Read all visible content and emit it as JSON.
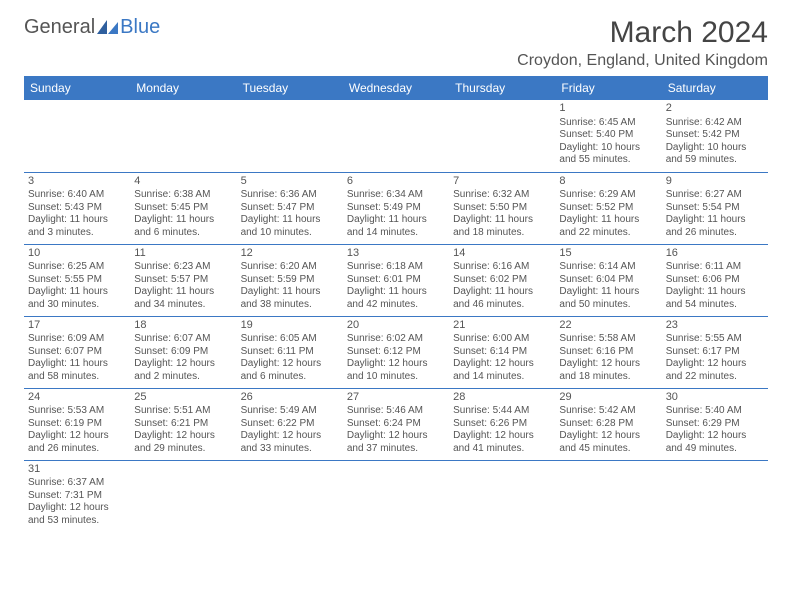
{
  "logo": {
    "text1": "General",
    "text2": "Blue"
  },
  "title": "March 2024",
  "location": "Croydon, England, United Kingdom",
  "colors": {
    "header_bg": "#3b78c4",
    "header_text": "#ffffff",
    "border": "#3b78c4",
    "text": "#555555",
    "background": "#ffffff"
  },
  "day_headers": [
    "Sunday",
    "Monday",
    "Tuesday",
    "Wednesday",
    "Thursday",
    "Friday",
    "Saturday"
  ],
  "weeks": [
    [
      null,
      null,
      null,
      null,
      null,
      {
        "n": "1",
        "sunrise": "Sunrise: 6:45 AM",
        "sunset": "Sunset: 5:40 PM",
        "daylight1": "Daylight: 10 hours",
        "daylight2": "and 55 minutes."
      },
      {
        "n": "2",
        "sunrise": "Sunrise: 6:42 AM",
        "sunset": "Sunset: 5:42 PM",
        "daylight1": "Daylight: 10 hours",
        "daylight2": "and 59 minutes."
      }
    ],
    [
      {
        "n": "3",
        "sunrise": "Sunrise: 6:40 AM",
        "sunset": "Sunset: 5:43 PM",
        "daylight1": "Daylight: 11 hours",
        "daylight2": "and 3 minutes."
      },
      {
        "n": "4",
        "sunrise": "Sunrise: 6:38 AM",
        "sunset": "Sunset: 5:45 PM",
        "daylight1": "Daylight: 11 hours",
        "daylight2": "and 6 minutes."
      },
      {
        "n": "5",
        "sunrise": "Sunrise: 6:36 AM",
        "sunset": "Sunset: 5:47 PM",
        "daylight1": "Daylight: 11 hours",
        "daylight2": "and 10 minutes."
      },
      {
        "n": "6",
        "sunrise": "Sunrise: 6:34 AM",
        "sunset": "Sunset: 5:49 PM",
        "daylight1": "Daylight: 11 hours",
        "daylight2": "and 14 minutes."
      },
      {
        "n": "7",
        "sunrise": "Sunrise: 6:32 AM",
        "sunset": "Sunset: 5:50 PM",
        "daylight1": "Daylight: 11 hours",
        "daylight2": "and 18 minutes."
      },
      {
        "n": "8",
        "sunrise": "Sunrise: 6:29 AM",
        "sunset": "Sunset: 5:52 PM",
        "daylight1": "Daylight: 11 hours",
        "daylight2": "and 22 minutes."
      },
      {
        "n": "9",
        "sunrise": "Sunrise: 6:27 AM",
        "sunset": "Sunset: 5:54 PM",
        "daylight1": "Daylight: 11 hours",
        "daylight2": "and 26 minutes."
      }
    ],
    [
      {
        "n": "10",
        "sunrise": "Sunrise: 6:25 AM",
        "sunset": "Sunset: 5:55 PM",
        "daylight1": "Daylight: 11 hours",
        "daylight2": "and 30 minutes."
      },
      {
        "n": "11",
        "sunrise": "Sunrise: 6:23 AM",
        "sunset": "Sunset: 5:57 PM",
        "daylight1": "Daylight: 11 hours",
        "daylight2": "and 34 minutes."
      },
      {
        "n": "12",
        "sunrise": "Sunrise: 6:20 AM",
        "sunset": "Sunset: 5:59 PM",
        "daylight1": "Daylight: 11 hours",
        "daylight2": "and 38 minutes."
      },
      {
        "n": "13",
        "sunrise": "Sunrise: 6:18 AM",
        "sunset": "Sunset: 6:01 PM",
        "daylight1": "Daylight: 11 hours",
        "daylight2": "and 42 minutes."
      },
      {
        "n": "14",
        "sunrise": "Sunrise: 6:16 AM",
        "sunset": "Sunset: 6:02 PM",
        "daylight1": "Daylight: 11 hours",
        "daylight2": "and 46 minutes."
      },
      {
        "n": "15",
        "sunrise": "Sunrise: 6:14 AM",
        "sunset": "Sunset: 6:04 PM",
        "daylight1": "Daylight: 11 hours",
        "daylight2": "and 50 minutes."
      },
      {
        "n": "16",
        "sunrise": "Sunrise: 6:11 AM",
        "sunset": "Sunset: 6:06 PM",
        "daylight1": "Daylight: 11 hours",
        "daylight2": "and 54 minutes."
      }
    ],
    [
      {
        "n": "17",
        "sunrise": "Sunrise: 6:09 AM",
        "sunset": "Sunset: 6:07 PM",
        "daylight1": "Daylight: 11 hours",
        "daylight2": "and 58 minutes."
      },
      {
        "n": "18",
        "sunrise": "Sunrise: 6:07 AM",
        "sunset": "Sunset: 6:09 PM",
        "daylight1": "Daylight: 12 hours",
        "daylight2": "and 2 minutes."
      },
      {
        "n": "19",
        "sunrise": "Sunrise: 6:05 AM",
        "sunset": "Sunset: 6:11 PM",
        "daylight1": "Daylight: 12 hours",
        "daylight2": "and 6 minutes."
      },
      {
        "n": "20",
        "sunrise": "Sunrise: 6:02 AM",
        "sunset": "Sunset: 6:12 PM",
        "daylight1": "Daylight: 12 hours",
        "daylight2": "and 10 minutes."
      },
      {
        "n": "21",
        "sunrise": "Sunrise: 6:00 AM",
        "sunset": "Sunset: 6:14 PM",
        "daylight1": "Daylight: 12 hours",
        "daylight2": "and 14 minutes."
      },
      {
        "n": "22",
        "sunrise": "Sunrise: 5:58 AM",
        "sunset": "Sunset: 6:16 PM",
        "daylight1": "Daylight: 12 hours",
        "daylight2": "and 18 minutes."
      },
      {
        "n": "23",
        "sunrise": "Sunrise: 5:55 AM",
        "sunset": "Sunset: 6:17 PM",
        "daylight1": "Daylight: 12 hours",
        "daylight2": "and 22 minutes."
      }
    ],
    [
      {
        "n": "24",
        "sunrise": "Sunrise: 5:53 AM",
        "sunset": "Sunset: 6:19 PM",
        "daylight1": "Daylight: 12 hours",
        "daylight2": "and 26 minutes."
      },
      {
        "n": "25",
        "sunrise": "Sunrise: 5:51 AM",
        "sunset": "Sunset: 6:21 PM",
        "daylight1": "Daylight: 12 hours",
        "daylight2": "and 29 minutes."
      },
      {
        "n": "26",
        "sunrise": "Sunrise: 5:49 AM",
        "sunset": "Sunset: 6:22 PM",
        "daylight1": "Daylight: 12 hours",
        "daylight2": "and 33 minutes."
      },
      {
        "n": "27",
        "sunrise": "Sunrise: 5:46 AM",
        "sunset": "Sunset: 6:24 PM",
        "daylight1": "Daylight: 12 hours",
        "daylight2": "and 37 minutes."
      },
      {
        "n": "28",
        "sunrise": "Sunrise: 5:44 AM",
        "sunset": "Sunset: 6:26 PM",
        "daylight1": "Daylight: 12 hours",
        "daylight2": "and 41 minutes."
      },
      {
        "n": "29",
        "sunrise": "Sunrise: 5:42 AM",
        "sunset": "Sunset: 6:28 PM",
        "daylight1": "Daylight: 12 hours",
        "daylight2": "and 45 minutes."
      },
      {
        "n": "30",
        "sunrise": "Sunrise: 5:40 AM",
        "sunset": "Sunset: 6:29 PM",
        "daylight1": "Daylight: 12 hours",
        "daylight2": "and 49 minutes."
      }
    ],
    [
      {
        "n": "31",
        "sunrise": "Sunrise: 6:37 AM",
        "sunset": "Sunset: 7:31 PM",
        "daylight1": "Daylight: 12 hours",
        "daylight2": "and 53 minutes."
      },
      null,
      null,
      null,
      null,
      null,
      null
    ]
  ]
}
